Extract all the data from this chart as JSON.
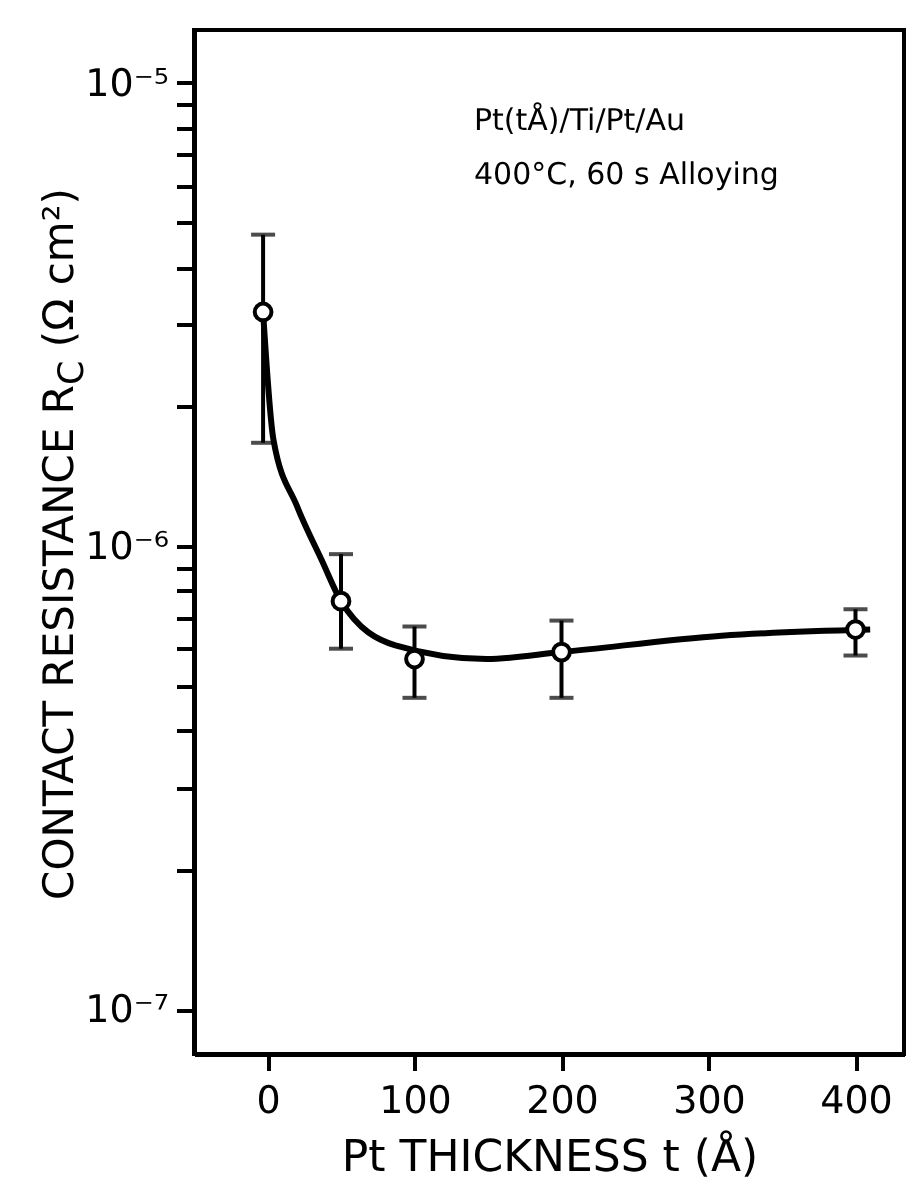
{
  "chart_data": {
    "type": "scatter",
    "xlabel": "Pt THICKNESS  t (Å)",
    "ylabel": "CONTACT RESISTANCE  R$_{C}$ (Ω cm²)",
    "annotations": [
      "Pt(tÅ)/Ti/Pt/Au",
      "400°C, 60 s    Alloying"
    ],
    "log": "y",
    "grid": false,
    "marker": "circle",
    "xlim": [
      -50,
      433
    ],
    "xticks": [
      0,
      100,
      200,
      300,
      400
    ],
    "ylim": [
      8e-08,
      1.3e-05
    ],
    "yticks": [
      {
        "value": 1e-07,
        "label": "10⁻⁷"
      },
      {
        "value": 2e-07,
        "label": null
      },
      {
        "value": 3e-07,
        "label": null
      },
      {
        "value": 4e-07,
        "label": null
      },
      {
        "value": 5e-07,
        "label": null
      },
      {
        "value": 6e-07,
        "label": null
      },
      {
        "value": 7e-07,
        "label": null
      },
      {
        "value": 8e-07,
        "label": null
      },
      {
        "value": 9e-07,
        "label": null
      },
      {
        "value": 1e-06,
        "label": "10⁻⁶"
      },
      {
        "value": 2e-06,
        "label": null
      },
      {
        "value": 3e-06,
        "label": null
      },
      {
        "value": 4e-06,
        "label": null
      },
      {
        "value": 5e-06,
        "label": null
      },
      {
        "value": 6e-06,
        "label": null
      },
      {
        "value": 7e-06,
        "label": null
      },
      {
        "value": 8e-06,
        "label": null
      },
      {
        "value": 9e-06,
        "label": null
      },
      {
        "value": 1e-05,
        "label": "10⁻⁵"
      }
    ],
    "series": [
      {
        "type": "line",
        "color": "#000000",
        "marker": "none",
        "x": [
          -3,
          4,
          20,
          37,
          50,
          87,
          149,
          200,
          309,
          410
        ],
        "values": [
          3.2e-06,
          1.7e-06,
          1.22e-06,
          9.3e-07,
          7.6e-07,
          6.1e-07,
          5.7e-07,
          5.9e-07,
          6.4e-07,
          6.6e-07
        ]
      },
      {
        "color": "#000000",
        "x": [
          -3,
          50,
          100,
          200,
          400
        ],
        "values": [
          3.2e-06,
          7.6e-07,
          5.7e-07,
          5.9e-07,
          6.6e-07
        ],
        "errors": [
          [
            1.67e-06,
            4.7e-06
          ],
          [
            6e-07,
            9.6e-07
          ],
          [
            4.7e-07,
            6.7e-07
          ],
          [
            4.7e-07,
            6.9e-07
          ],
          [
            5.8e-07,
            7.3e-07
          ]
        ]
      }
    ]
  }
}
